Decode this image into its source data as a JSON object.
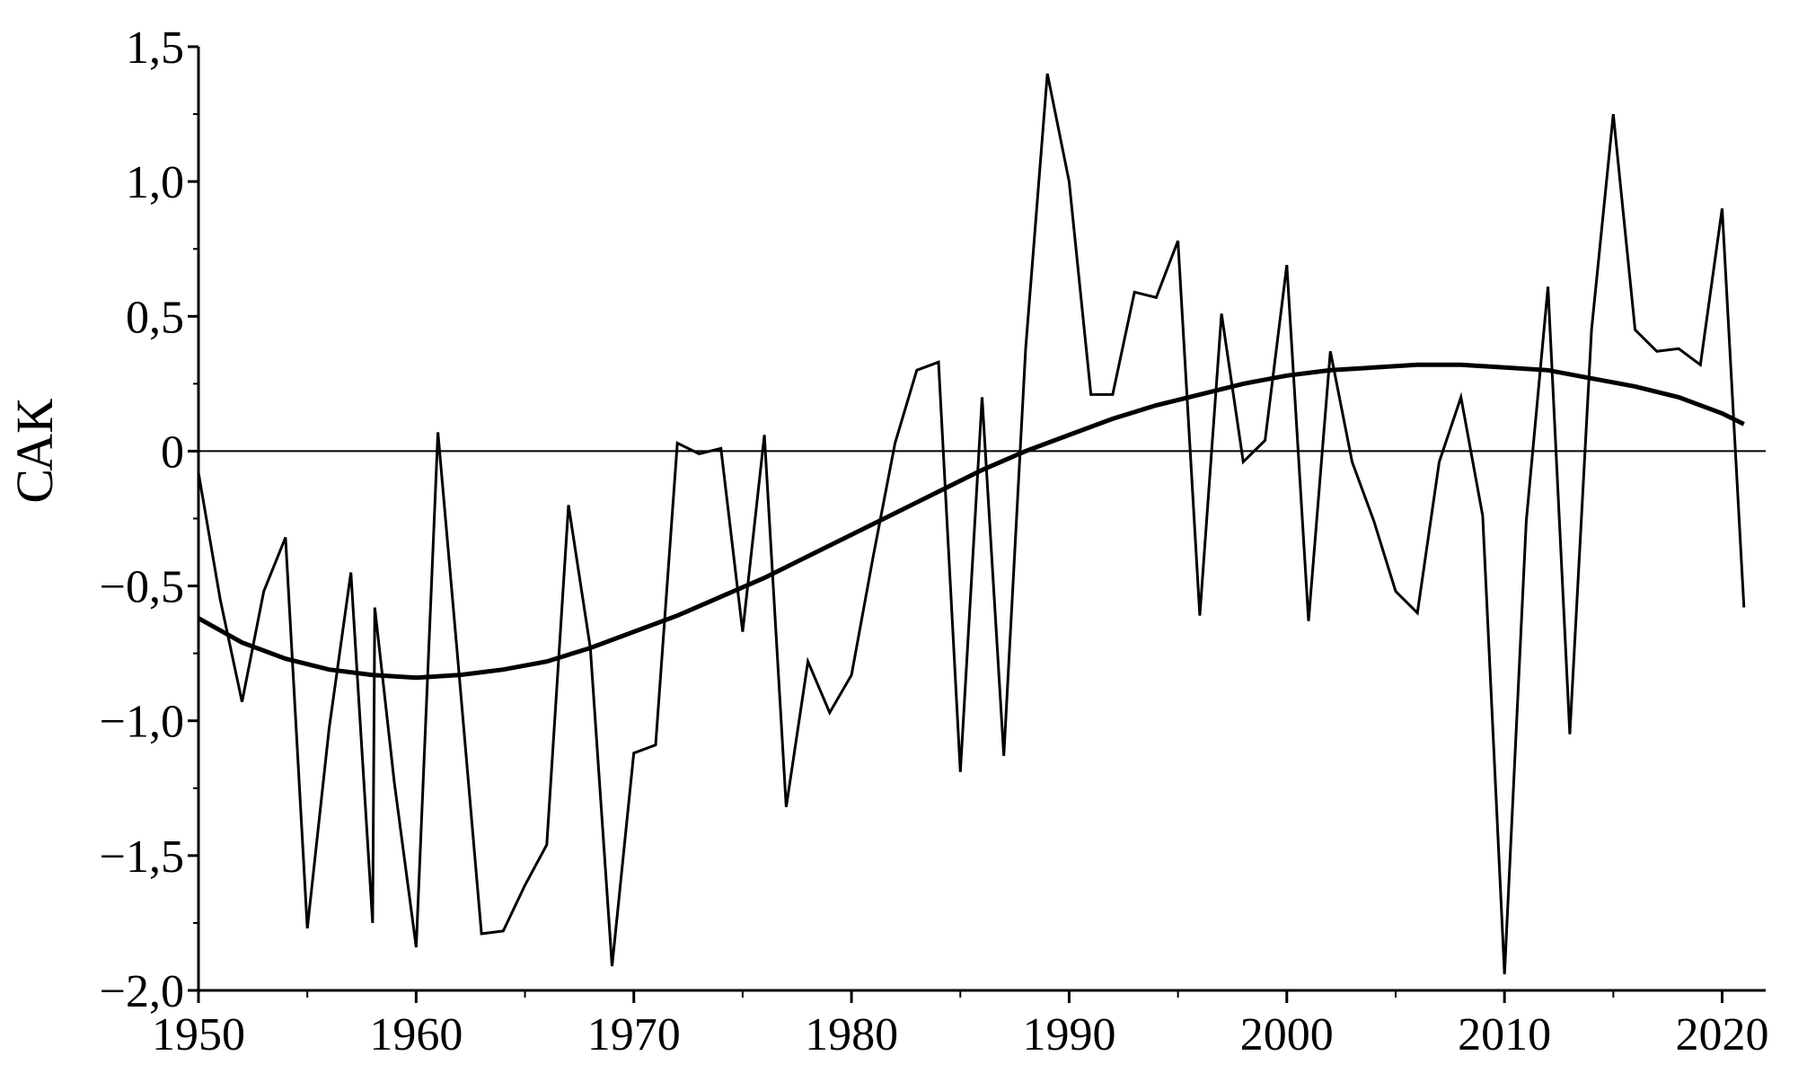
{
  "chart_data": {
    "type": "line",
    "title": "",
    "xlabel": "",
    "ylabel": "САК",
    "xlim": [
      1950,
      2022
    ],
    "ylim": [
      -2.0,
      1.5
    ],
    "grid": false,
    "legend": "none",
    "x_ticks": [
      {
        "value": 1950,
        "label": "1950"
      },
      {
        "value": 1960,
        "label": "1960"
      },
      {
        "value": 1970,
        "label": "1970"
      },
      {
        "value": 1980,
        "label": "1980"
      },
      {
        "value": 1990,
        "label": "1990"
      },
      {
        "value": 2000,
        "label": "2000"
      },
      {
        "value": 2010,
        "label": "2010"
      },
      {
        "value": 2020,
        "label": "2020"
      }
    ],
    "y_ticks": [
      {
        "value": 1.5,
        "label": "1,5"
      },
      {
        "value": 1.0,
        "label": "1,0"
      },
      {
        "value": 0.5,
        "label": "0,5"
      },
      {
        "value": 0,
        "label": "0"
      },
      {
        "value": -0.5,
        "label": "−0,5"
      },
      {
        "value": -1.0,
        "label": "−1,0"
      },
      {
        "value": -1.5,
        "label": "−1,5"
      },
      {
        "value": -2.0,
        "label": "−2,0"
      }
    ],
    "series": [
      {
        "style": "thin",
        "x": [
          1950,
          1951,
          1952,
          1953,
          1954,
          1955,
          1956,
          1957,
          1958,
          1958.1,
          1959,
          1960,
          1961,
          1962,
          1963,
          1964,
          1965,
          1966,
          1967,
          1968,
          1969,
          1970,
          1971,
          1972,
          1973,
          1974,
          1975,
          1976,
          1977,
          1978,
          1979,
          1980,
          1981,
          1982,
          1983,
          1984,
          1985,
          1986,
          1987,
          1988,
          1989,
          1990,
          1991,
          1992,
          1993,
          1994,
          1995,
          1996,
          1997,
          1998,
          1999,
          2000,
          2001,
          2002,
          2003,
          2004,
          2005,
          2006,
          2007,
          2008,
          2009,
          2010,
          2011,
          2012,
          2013,
          2014,
          2015,
          2016,
          2017,
          2018,
          2019,
          2020,
          2021
        ],
        "y": [
          -0.08,
          -0.55,
          -0.93,
          -0.52,
          -0.32,
          -1.77,
          -1.03,
          -0.45,
          -1.75,
          -0.58,
          -1.23,
          -1.84,
          0.07,
          -0.85,
          -1.79,
          -1.78,
          -1.61,
          -1.46,
          -0.2,
          -0.73,
          -1.91,
          -1.12,
          -1.09,
          0.03,
          -0.01,
          0.01,
          -0.67,
          0.06,
          -1.32,
          -0.78,
          -0.97,
          -0.83,
          -0.39,
          0.03,
          0.3,
          0.33,
          -1.19,
          0.2,
          -1.13,
          0.38,
          1.4,
          1.0,
          0.21,
          0.21,
          0.59,
          0.57,
          0.78,
          -0.61,
          0.51,
          -0.04,
          0.04,
          0.69,
          -0.63,
          0.37,
          -0.04,
          -0.26,
          -0.52,
          -0.6,
          -0.04,
          0.2,
          -0.24,
          -1.94,
          -0.26,
          0.61,
          -1.05,
          0.45,
          1.25,
          0.45,
          0.37,
          0.38,
          0.32,
          0.9,
          -0.58
        ]
      },
      {
        "style": "thick",
        "x": [
          1950,
          1952,
          1954,
          1956,
          1958,
          1960,
          1962,
          1964,
          1966,
          1968,
          1970,
          1972,
          1974,
          1976,
          1978,
          1980,
          1982,
          1984,
          1986,
          1988,
          1990,
          1992,
          1994,
          1996,
          1998,
          2000,
          2002,
          2004,
          2006,
          2008,
          2010,
          2012,
          2014,
          2016,
          2018,
          2020,
          2021
        ],
        "y": [
          -0.62,
          -0.71,
          -0.77,
          -0.81,
          -0.83,
          -0.84,
          -0.83,
          -0.81,
          -0.78,
          -0.73,
          -0.67,
          -0.61,
          -0.54,
          -0.47,
          -0.39,
          -0.31,
          -0.23,
          -0.15,
          -0.07,
          0.0,
          0.06,
          0.12,
          0.17,
          0.21,
          0.25,
          0.28,
          0.3,
          0.31,
          0.32,
          0.32,
          0.31,
          0.3,
          0.27,
          0.24,
          0.2,
          0.14,
          0.1
        ]
      }
    ]
  }
}
